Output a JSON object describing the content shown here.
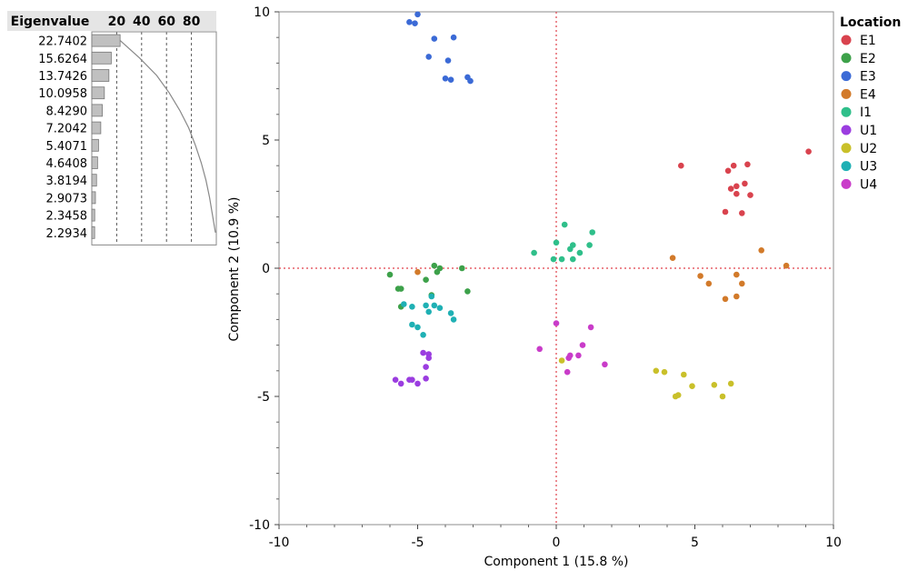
{
  "eigen_panel": {
    "header": "Eigenvalue",
    "axis_ticks": [
      "20",
      "40",
      "60",
      "80"
    ],
    "axis_values": [
      20,
      40,
      60,
      80
    ],
    "xmax": 100,
    "bar_color": "#c0c0c0",
    "values": [
      22.7402,
      15.6264,
      13.7426,
      10.0958,
      8.429,
      7.2042,
      5.4071,
      4.6408,
      3.8194,
      2.9073,
      2.3458,
      2.2934
    ],
    "labels": [
      "22.7402",
      "15.6264",
      "13.7426",
      "10.0958",
      "8.4290",
      "7.2042",
      "5.4071",
      "4.6408",
      "3.8194",
      "2.9073",
      "2.3458",
      "2.2934"
    ]
  },
  "chart_data": {
    "type": "scatter",
    "title": "",
    "xlabel": "Component 1  (15.8 %)",
    "ylabel": "Component 2  (10.9 %)",
    "xlim": [
      -10,
      10
    ],
    "ylim": [
      -10,
      10
    ],
    "xticks": [
      -10,
      -5,
      0,
      5,
      10
    ],
    "yticks": [
      -10,
      -5,
      0,
      5,
      10
    ],
    "xtick_labels": [
      "-10",
      "-5",
      "0",
      "5",
      "10"
    ],
    "ytick_labels": [
      "-10",
      "-5",
      "0",
      "5",
      "10"
    ],
    "reference_lines": {
      "x": 0,
      "y": 0,
      "color": "#e0404a"
    },
    "legend_title": "Location",
    "legend_position": "right",
    "series": [
      {
        "name": "E1",
        "color": "#d9434e",
        "points": [
          [
            6.2,
            3.8
          ],
          [
            6.4,
            4.0
          ],
          [
            6.9,
            4.05
          ],
          [
            4.5,
            4.0
          ],
          [
            9.1,
            4.55
          ],
          [
            6.3,
            3.1
          ],
          [
            6.5,
            3.2
          ],
          [
            6.8,
            3.3
          ],
          [
            6.5,
            2.9
          ],
          [
            7.0,
            2.85
          ],
          [
            6.1,
            2.2
          ],
          [
            6.7,
            2.15
          ]
        ]
      },
      {
        "name": "E2",
        "color": "#3da14a",
        "points": [
          [
            -4.4,
            0.1
          ],
          [
            -4.2,
            0.0
          ],
          [
            -3.4,
            0.0
          ],
          [
            -6.0,
            -0.25
          ],
          [
            -4.3,
            -0.15
          ],
          [
            -4.7,
            -0.45
          ],
          [
            -5.7,
            -0.8
          ],
          [
            -5.6,
            -0.8
          ],
          [
            -3.2,
            -0.9
          ],
          [
            -4.5,
            -1.05
          ],
          [
            -5.6,
            -1.5
          ]
        ]
      },
      {
        "name": "E3",
        "color": "#3b6ad6",
        "points": [
          [
            -5.0,
            9.9
          ],
          [
            -5.3,
            9.6
          ],
          [
            -5.1,
            9.55
          ],
          [
            -4.4,
            8.95
          ],
          [
            -3.7,
            9.0
          ],
          [
            -4.6,
            8.25
          ],
          [
            -3.9,
            8.1
          ],
          [
            -3.2,
            7.45
          ],
          [
            -3.8,
            7.35
          ],
          [
            -3.1,
            7.3
          ],
          [
            -4.0,
            7.4
          ]
        ]
      },
      {
        "name": "E4",
        "color": "#d27a2a",
        "points": [
          [
            4.2,
            0.4
          ],
          [
            7.4,
            0.7
          ],
          [
            8.3,
            0.1
          ],
          [
            5.2,
            -0.3
          ],
          [
            6.5,
            -0.25
          ],
          [
            5.5,
            -0.6
          ],
          [
            6.7,
            -0.6
          ],
          [
            6.1,
            -1.2
          ],
          [
            6.5,
            -1.1
          ],
          [
            -5.0,
            -0.15
          ]
        ]
      },
      {
        "name": "I1",
        "color": "#2fbf8a",
        "points": [
          [
            -0.8,
            0.6
          ],
          [
            0.3,
            1.7
          ],
          [
            0.0,
            1.0
          ],
          [
            0.6,
            0.9
          ],
          [
            1.3,
            1.4
          ],
          [
            0.5,
            0.75
          ],
          [
            0.85,
            0.6
          ],
          [
            1.2,
            0.9
          ],
          [
            -0.1,
            0.35
          ],
          [
            0.2,
            0.35
          ],
          [
            0.6,
            0.35
          ]
        ]
      },
      {
        "name": "U1",
        "color": "#9b3de0",
        "points": [
          [
            -4.8,
            -3.3
          ],
          [
            -4.6,
            -3.35
          ],
          [
            -4.6,
            -3.5
          ],
          [
            -4.7,
            -3.85
          ],
          [
            -5.8,
            -4.35
          ],
          [
            -5.6,
            -4.5
          ],
          [
            -5.3,
            -4.35
          ],
          [
            -5.2,
            -4.35
          ],
          [
            -5.0,
            -4.5
          ],
          [
            -4.7,
            -4.3
          ]
        ]
      },
      {
        "name": "U2",
        "color": "#c9c02a",
        "points": [
          [
            3.6,
            -4.0
          ],
          [
            3.9,
            -4.05
          ],
          [
            4.6,
            -4.15
          ],
          [
            4.4,
            -4.95
          ],
          [
            4.3,
            -5.0
          ],
          [
            5.7,
            -4.55
          ],
          [
            6.3,
            -4.5
          ],
          [
            4.9,
            -4.6
          ],
          [
            6.0,
            -5.0
          ],
          [
            0.2,
            -3.6
          ]
        ]
      },
      {
        "name": "U3",
        "color": "#1fb0b4",
        "points": [
          [
            -5.5,
            -1.4
          ],
          [
            -4.7,
            -1.45
          ],
          [
            -4.4,
            -1.45
          ],
          [
            -4.5,
            -1.1
          ],
          [
            -5.2,
            -1.5
          ],
          [
            -4.6,
            -1.7
          ],
          [
            -4.2,
            -1.55
          ],
          [
            -3.8,
            -1.75
          ],
          [
            -3.7,
            -2.0
          ],
          [
            -5.2,
            -2.2
          ],
          [
            -5.0,
            -2.3
          ],
          [
            -4.8,
            -2.6
          ]
        ]
      },
      {
        "name": "U4",
        "color": "#c93cc9",
        "points": [
          [
            0.0,
            -2.15
          ],
          [
            1.25,
            -2.3
          ],
          [
            -0.6,
            -3.15
          ],
          [
            0.95,
            -3.0
          ],
          [
            0.5,
            -3.4
          ],
          [
            0.8,
            -3.4
          ],
          [
            0.45,
            -3.5
          ],
          [
            1.75,
            -3.75
          ],
          [
            0.4,
            -4.05
          ]
        ]
      }
    ]
  }
}
